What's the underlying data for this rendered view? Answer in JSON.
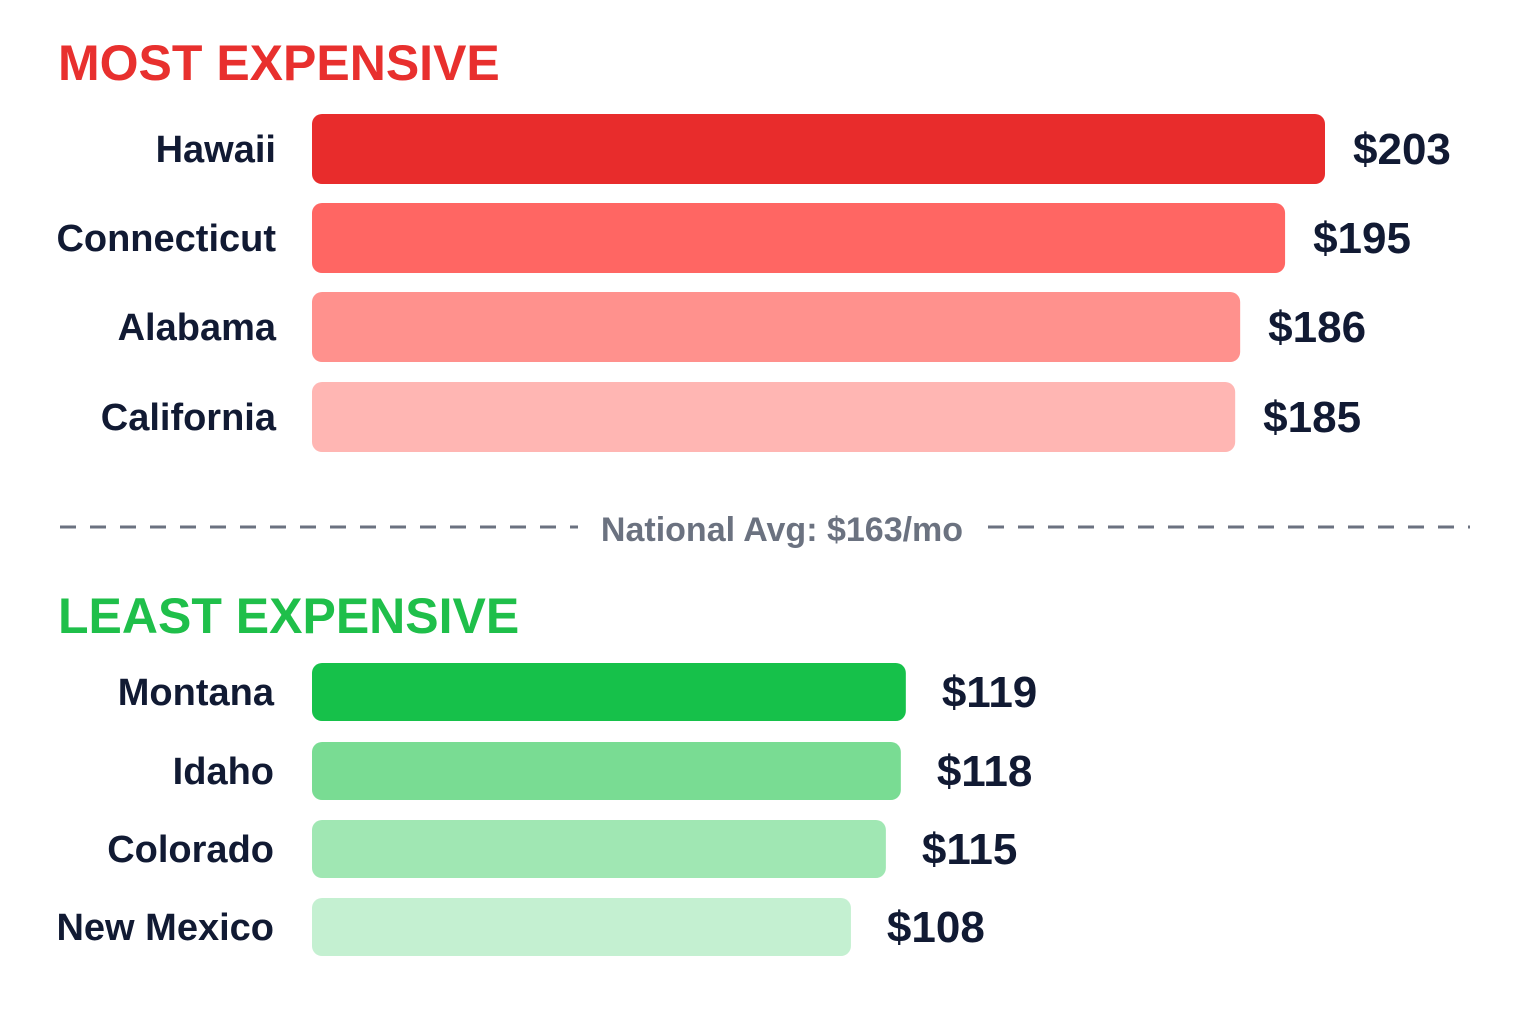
{
  "chart_data": {
    "type": "bar",
    "orientation": "horizontal",
    "sections": [
      {
        "title": "MOST EXPENSIVE",
        "title_color": "#e8302e",
        "categories": [
          "Hawaii",
          "Connecticut",
          "Alabama",
          "California"
        ],
        "values": [
          203,
          195,
          186,
          185
        ],
        "value_labels": [
          "$203",
          "$195",
          "$186",
          "$185"
        ],
        "colors": [
          "#e82c2c",
          "#ff6663",
          "#ff918d",
          "#ffb6b3"
        ]
      },
      {
        "title": "LEAST EXPENSIVE",
        "title_color": "#1fbf4a",
        "categories": [
          "Montana",
          "Idaho",
          "Colorado",
          "New Mexico"
        ],
        "values": [
          119,
          118,
          115,
          108
        ],
        "value_labels": [
          "$119",
          "$118",
          "$115",
          "$108"
        ],
        "colors": [
          "#16c14a",
          "#79dc93",
          "#a0e7b3",
          "#c4f0d1"
        ]
      }
    ],
    "reference_line": {
      "label": "National Avg: $163/mo",
      "value": 163,
      "style": "dashed",
      "color": "#6b7280"
    },
    "legend": "none",
    "grid": false
  }
}
